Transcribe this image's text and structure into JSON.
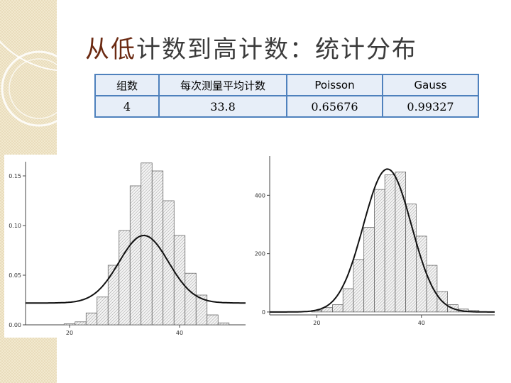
{
  "slide": {
    "title_em": "从低",
    "title_rest": "计数到高计数：统计分布"
  },
  "table": {
    "headers": [
      "组数",
      "每次测量平均计数",
      "Poisson",
      "Gauss"
    ],
    "rows": [
      [
        "4",
        "33.8",
        "0.65676",
        "0.99327"
      ]
    ]
  },
  "chart_data": [
    {
      "type": "bar",
      "title": "",
      "xlabel": "",
      "ylabel": "",
      "x_ticks": [
        20,
        40
      ],
      "y_ticks": [
        "0.00",
        "0.05",
        "0.10",
        "0.15"
      ],
      "xlim": [
        12,
        52
      ],
      "ylim": [
        0,
        0.16
      ],
      "bin_width": 2,
      "bin_starts": [
        19,
        21,
        23,
        25,
        27,
        29,
        31,
        33,
        35,
        37,
        39,
        41,
        43,
        45,
        47
      ],
      "values": [
        0.001,
        0.003,
        0.012,
        0.028,
        0.06,
        0.095,
        0.14,
        0.163,
        0.155,
        0.125,
        0.09,
        0.052,
        0.03,
        0.01,
        0.002
      ],
      "series": [
        {
          "name": "",
          "type": "line",
          "curve": "gaussian",
          "mean": 33.5,
          "sigma": 4.5,
          "peak": 0.09,
          "baseline": 0.022
        }
      ]
    },
    {
      "type": "bar",
      "title": "",
      "xlabel": "",
      "ylabel": "",
      "x_ticks": [
        20,
        40
      ],
      "y_ticks": [
        "0",
        "200",
        "400"
      ],
      "xlim": [
        11,
        54
      ],
      "ylim": [
        -10,
        520
      ],
      "bin_width": 2,
      "bin_starts": [
        13,
        15,
        17,
        19,
        21,
        23,
        25,
        27,
        29,
        31,
        33,
        35,
        37,
        39,
        41,
        43,
        45,
        47,
        49,
        51
      ],
      "values": [
        0,
        0,
        0,
        5,
        15,
        25,
        80,
        180,
        290,
        420,
        470,
        480,
        370,
        260,
        160,
        70,
        25,
        10,
        5,
        0
      ],
      "series": [
        {
          "name": "",
          "type": "line",
          "curve": "gaussian",
          "mean": 33.5,
          "sigma": 4.6,
          "peak": 490,
          "baseline": 0
        }
      ]
    }
  ]
}
